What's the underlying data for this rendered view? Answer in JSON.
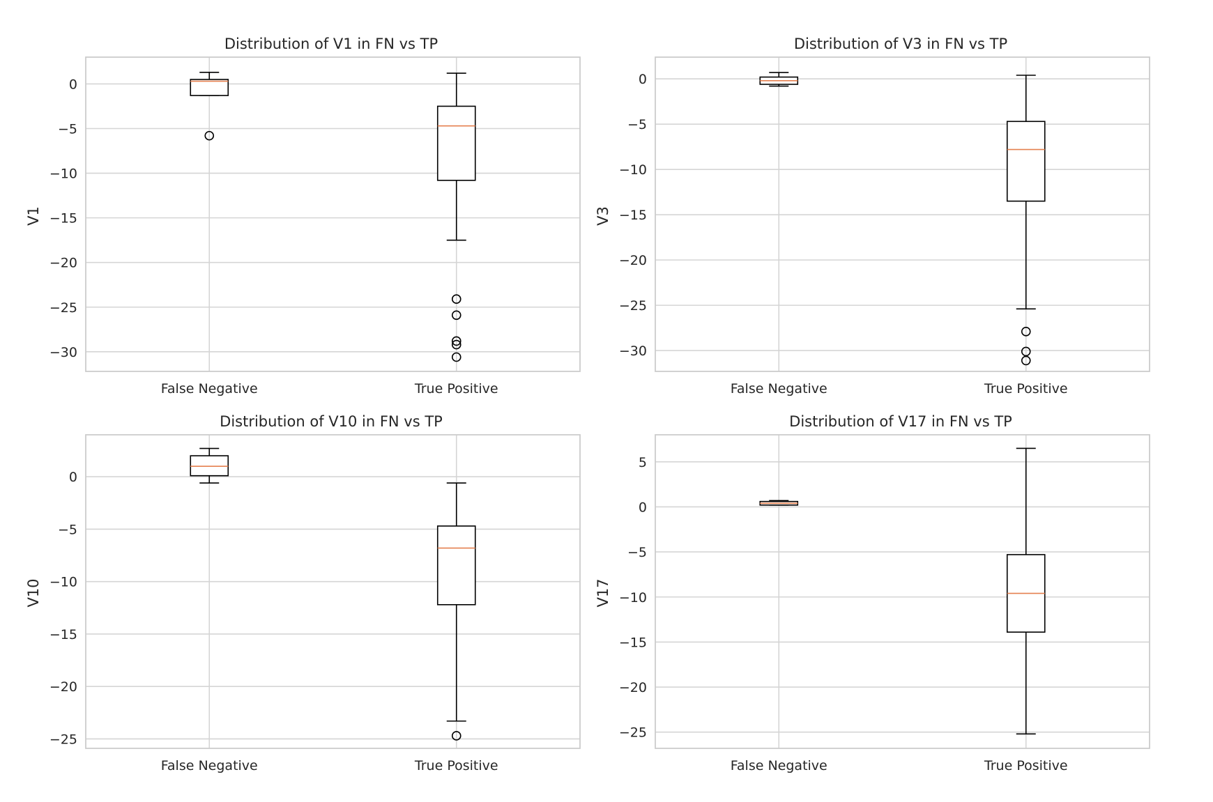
{
  "chart_data": [
    {
      "type": "box",
      "title": "Distribution of V1 in FN vs TP",
      "xlabel": "",
      "ylabel": "V1",
      "categories": [
        "False Negative",
        "True Positive"
      ],
      "ylim": [
        -32.2,
        3.0
      ],
      "yticks": [
        0,
        -5,
        -10,
        -15,
        -20,
        -25,
        -30
      ],
      "grid": true,
      "boxes": [
        {
          "name": "False Negative",
          "whislo": -1.3,
          "q1": -1.3,
          "med": 0.3,
          "q3": 0.5,
          "whishi": 1.3,
          "fliers": [
            -5.8
          ]
        },
        {
          "name": "True Positive",
          "whislo": -17.5,
          "q1": -10.8,
          "med": -4.7,
          "q3": -2.5,
          "whishi": 1.2,
          "fliers": [
            -24.1,
            -25.9,
            -28.8,
            -29.2,
            -30.6
          ]
        }
      ]
    },
    {
      "type": "box",
      "title": "Distribution of V3 in FN vs TP",
      "xlabel": "",
      "ylabel": "V3",
      "categories": [
        "False Negative",
        "True Positive"
      ],
      "ylim": [
        -32.3,
        2.4
      ],
      "yticks": [
        0,
        -5,
        -10,
        -15,
        -20,
        -25,
        -30
      ],
      "grid": true,
      "boxes": [
        {
          "name": "False Negative",
          "whislo": -0.8,
          "q1": -0.6,
          "med": -0.2,
          "q3": 0.2,
          "whishi": 0.7,
          "fliers": []
        },
        {
          "name": "True Positive",
          "whislo": -25.4,
          "q1": -13.5,
          "med": -7.8,
          "q3": -4.7,
          "whishi": 0.4,
          "fliers": [
            -27.9,
            -30.1,
            -31.1
          ]
        }
      ]
    },
    {
      "type": "box",
      "title": "Distribution of V10 in FN vs TP",
      "xlabel": "",
      "ylabel": "V10",
      "categories": [
        "False Negative",
        "True Positive"
      ],
      "ylim": [
        -25.9,
        4.0
      ],
      "yticks": [
        0,
        -5,
        -10,
        -15,
        -20,
        -25
      ],
      "grid": true,
      "boxes": [
        {
          "name": "False Negative",
          "whislo": -0.6,
          "q1": 0.1,
          "med": 1.0,
          "q3": 2.0,
          "whishi": 2.7,
          "fliers": []
        },
        {
          "name": "True Positive",
          "whislo": -23.3,
          "q1": -12.2,
          "med": -6.8,
          "q3": -4.7,
          "whishi": -0.6,
          "fliers": [
            -24.7
          ]
        }
      ]
    },
    {
      "type": "box",
      "title": "Distribution of V17 in FN vs TP",
      "xlabel": "",
      "ylabel": "V17",
      "categories": [
        "False Negative",
        "True Positive"
      ],
      "ylim": [
        -26.8,
        8.0
      ],
      "yticks": [
        5,
        0,
        -5,
        -10,
        -15,
        -20,
        -25
      ],
      "grid": true,
      "boxes": [
        {
          "name": "False Negative",
          "whislo": 0.2,
          "q1": 0.2,
          "med": 0.4,
          "q3": 0.6,
          "whishi": 0.7,
          "fliers": []
        },
        {
          "name": "True Positive",
          "whislo": -25.2,
          "q1": -13.9,
          "med": -9.6,
          "q3": -5.3,
          "whishi": 6.5,
          "fliers": []
        }
      ]
    }
  ],
  "colors": {
    "median": "#e5804f",
    "box": "#000000",
    "grid": "#d5d5d5",
    "frame": "#cccccc",
    "text": "#262626"
  }
}
